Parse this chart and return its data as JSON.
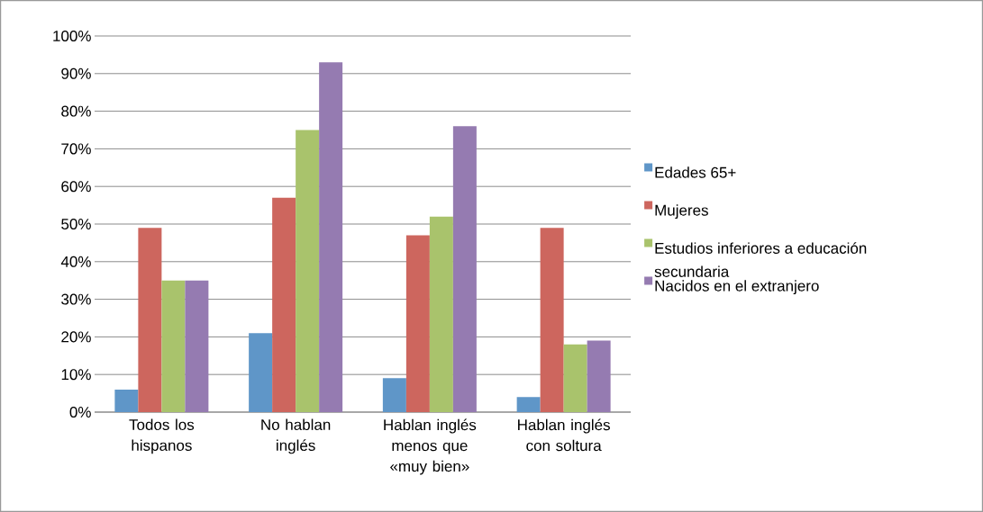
{
  "chart_data": {
    "type": "bar",
    "categories": [
      "Todos los hispanos",
      "No hablan inglés",
      "Hablan inglés menos que «muy bien»",
      "Hablan inglés con soltura"
    ],
    "series": [
      {
        "name": "Edades 65+",
        "color": "#5f96c8",
        "values": [
          6,
          21,
          9,
          4
        ]
      },
      {
        "name": "Mujeres",
        "color": "#cd665e",
        "values": [
          49,
          57,
          47,
          49
        ]
      },
      {
        "name": "Estudios inferiores a educación secundaria",
        "color": "#a9c36c",
        "values": [
          35,
          75,
          52,
          18
        ]
      },
      {
        "name": "Nacidos en el extranjero",
        "color": "#957bb1",
        "values": [
          35,
          93,
          76,
          19
        ]
      }
    ],
    "ylim": [
      0,
      100
    ],
    "yticks": [
      {
        "value": 0,
        "label": "0%"
      },
      {
        "value": 10,
        "label": "10%"
      },
      {
        "value": 20,
        "label": "20%"
      },
      {
        "value": 30,
        "label": "30%"
      },
      {
        "value": 40,
        "label": "40%"
      },
      {
        "value": 50,
        "label": "50%"
      },
      {
        "value": 60,
        "label": "60%"
      },
      {
        "value": 70,
        "label": "70%"
      },
      {
        "value": 80,
        "label": "80%"
      },
      {
        "value": 90,
        "label": "90%"
      },
      {
        "value": 100,
        "label": "100%"
      }
    ],
    "grid": "y",
    "legend": "right"
  }
}
